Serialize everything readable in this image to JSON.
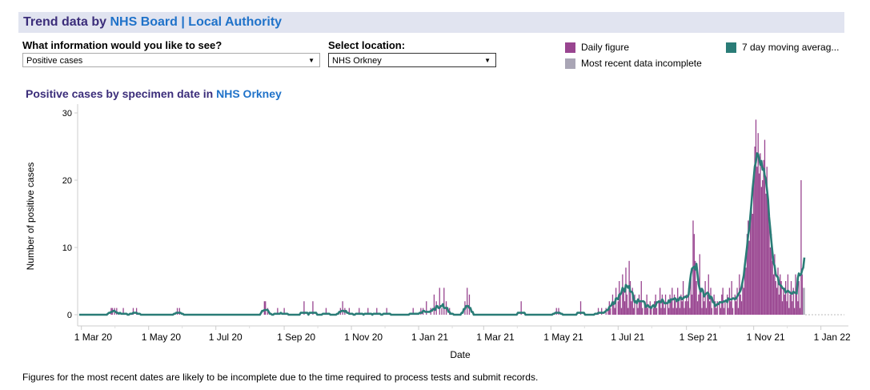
{
  "header": {
    "prefix": "Trend data by ",
    "link1": "NHS Board",
    "sep": " | ",
    "link2": "Local Authority"
  },
  "filters": {
    "info_label": "What information would you like to see?",
    "info_value": "Positive cases",
    "location_label": "Select location:",
    "location_value": "NHS Orkney"
  },
  "legend": [
    {
      "label": "Daily figure",
      "color": "#994590"
    },
    {
      "label": "Most recent data incomplete",
      "color": "#a9a5b5"
    },
    {
      "label": "7 day moving averag...",
      "color": "#2a7c77"
    }
  ],
  "chart_title": {
    "prefix": "Positive cases by specimen date in ",
    "location": "NHS Orkney"
  },
  "footer": "Figures for the most recent dates are likely to be incomplete due to the time required to process tests and submit records.",
  "chart_data": {
    "type": "bar",
    "xlabel": "Date",
    "ylabel": "Number of positive cases",
    "ylim": [
      0,
      30
    ],
    "yticks": [
      0,
      10,
      20,
      30
    ],
    "xlim": [
      "2020-02-27",
      "2022-01-20"
    ],
    "xticks": [
      {
        "date": "2020-03-01",
        "label": "1 Mar 20"
      },
      {
        "date": "2020-05-01",
        "label": "1 May 20"
      },
      {
        "date": "2020-07-01",
        "label": "1 Jul 20"
      },
      {
        "date": "2020-09-01",
        "label": "1 Sep 20"
      },
      {
        "date": "2020-11-01",
        "label": "1 Nov 20"
      },
      {
        "date": "2021-01-01",
        "label": "1 Jan 21"
      },
      {
        "date": "2021-03-01",
        "label": "1 Mar 21"
      },
      {
        "date": "2021-05-01",
        "label": "1 May 21"
      },
      {
        "date": "2021-07-01",
        "label": "1 Jul 21"
      },
      {
        "date": "2021-09-01",
        "label": "1 Sep 21"
      },
      {
        "date": "2021-11-01",
        "label": "1 Nov 21"
      },
      {
        "date": "2022-01-01",
        "label": "1 Jan 22"
      }
    ],
    "series_colors": {
      "daily": "#994590",
      "incomplete": "#a9a5b5",
      "moving_average": "#2a7c77"
    },
    "incomplete_from": "2021-12-16",
    "daily_nonzero": {
      "2020-03-28": 1,
      "2020-03-29": 1,
      "2020-03-31": 1,
      "2020-04-02": 1,
      "2020-04-08": 1,
      "2020-04-17": 1,
      "2020-04-20": 1,
      "2020-05-27": 1,
      "2020-05-29": 1,
      "2020-08-14": 2,
      "2020-08-15": 2,
      "2020-08-17": 1,
      "2020-08-26": 1,
      "2020-09-01": 1,
      "2020-09-19": 2,
      "2020-09-27": 2,
      "2020-10-09": 1,
      "2020-10-22": 1,
      "2020-10-24": 2,
      "2020-10-26": 1,
      "2020-10-30": 1,
      "2020-11-08": 1,
      "2020-11-16": 1,
      "2020-11-24": 1,
      "2020-12-03": 1,
      "2020-12-27": 1,
      "2021-01-03": 1,
      "2021-01-05": 1,
      "2021-01-08": 2,
      "2021-01-12": 1,
      "2021-01-15": 3,
      "2021-01-17": 2,
      "2021-01-20": 4,
      "2021-01-22": 1,
      "2021-01-24": 4,
      "2021-01-26": 2,
      "2021-01-29": 1,
      "2021-02-12": 2,
      "2021-02-14": 4,
      "2021-02-16": 3,
      "2021-04-04": 2,
      "2021-05-06": 1,
      "2021-05-08": 1,
      "2021-05-28": 2,
      "2021-06-13": 1,
      "2021-06-16": 1,
      "2021-06-20": 1,
      "2021-06-22": 1,
      "2021-06-23": 2,
      "2021-06-24": 1,
      "2021-06-26": 3,
      "2021-06-27": 2,
      "2021-06-28": 1,
      "2021-06-29": 4,
      "2021-07-01": 2,
      "2021-07-02": 5,
      "2021-07-03": 3,
      "2021-07-04": 1,
      "2021-07-05": 6,
      "2021-07-06": 4,
      "2021-07-07": 2,
      "2021-07-08": 7,
      "2021-07-09": 3,
      "2021-07-10": 1,
      "2021-07-11": 8,
      "2021-07-12": 5,
      "2021-07-13": 2,
      "2021-07-14": 4,
      "2021-07-15": 1,
      "2021-07-16": 3,
      "2021-07-18": 2,
      "2021-07-19": 1,
      "2021-07-20": 3,
      "2021-07-21": 2,
      "2021-07-22": 5,
      "2021-07-23": 1,
      "2021-07-25": 2,
      "2021-07-26": 1,
      "2021-07-27": 3,
      "2021-07-28": 1,
      "2021-07-30": 2,
      "2021-07-31": 1,
      "2021-08-02": 1,
      "2021-08-03": 2,
      "2021-08-04": 3,
      "2021-08-05": 1,
      "2021-08-07": 2,
      "2021-08-08": 4,
      "2021-08-09": 1,
      "2021-08-10": 3,
      "2021-08-11": 2,
      "2021-08-12": 1,
      "2021-08-13": 3,
      "2021-08-15": 2,
      "2021-08-16": 1,
      "2021-08-17": 3,
      "2021-08-18": 2,
      "2021-08-19": 4,
      "2021-08-20": 1,
      "2021-08-21": 3,
      "2021-08-22": 2,
      "2021-08-23": 1,
      "2021-08-24": 4,
      "2021-08-25": 2,
      "2021-08-26": 1,
      "2021-08-27": 3,
      "2021-08-28": 2,
      "2021-08-29": 5,
      "2021-08-30": 1,
      "2021-08-31": 2,
      "2021-09-01": 3,
      "2021-09-02": 2,
      "2021-09-03": 4,
      "2021-09-04": 1,
      "2021-09-05": 6,
      "2021-09-06": 3,
      "2021-09-07": 14,
      "2021-09-08": 12,
      "2021-09-09": 8,
      "2021-09-10": 5,
      "2021-09-11": 2,
      "2021-09-12": 3,
      "2021-09-13": 9,
      "2021-09-14": 4,
      "2021-09-15": 1,
      "2021-09-16": 3,
      "2021-09-17": 2,
      "2021-09-18": 5,
      "2021-09-19": 1,
      "2021-09-20": 3,
      "2021-09-21": 6,
      "2021-09-22": 2,
      "2021-09-23": 4,
      "2021-09-24": 1,
      "2021-09-26": 3,
      "2021-09-27": 2,
      "2021-09-28": 1,
      "2021-09-29": 2,
      "2021-10-01": 2,
      "2021-10-02": 1,
      "2021-10-03": 3,
      "2021-10-04": 4,
      "2021-10-05": 1,
      "2021-10-06": 2,
      "2021-10-08": 3,
      "2021-10-09": 1,
      "2021-10-10": 4,
      "2021-10-11": 2,
      "2021-10-12": 5,
      "2021-10-13": 1,
      "2021-10-15": 3,
      "2021-10-16": 2,
      "2021-10-17": 4,
      "2021-10-18": 1,
      "2021-10-19": 6,
      "2021-10-20": 3,
      "2021-10-21": 2,
      "2021-10-22": 5,
      "2021-10-23": 4,
      "2021-10-24": 8,
      "2021-10-25": 7,
      "2021-10-26": 12,
      "2021-10-27": 14,
      "2021-10-28": 11,
      "2021-10-29": 15,
      "2021-10-30": 16,
      "2021-10-31": 15,
      "2021-11-01": 20,
      "2021-11-02": 25,
      "2021-11-03": 29,
      "2021-11-04": 22,
      "2021-11-05": 27,
      "2021-11-06": 21,
      "2021-11-07": 24,
      "2021-11-08": 19,
      "2021-11-09": 20,
      "2021-11-10": 23,
      "2021-11-11": 26,
      "2021-11-12": 18,
      "2021-11-13": 22,
      "2021-11-14": 17,
      "2021-11-15": 15,
      "2021-11-16": 10,
      "2021-11-17": 12,
      "2021-11-18": 8,
      "2021-11-19": 6,
      "2021-11-20": 9,
      "2021-11-21": 5,
      "2021-11-22": 4,
      "2021-11-23": 7,
      "2021-11-24": 3,
      "2021-11-25": 6,
      "2021-11-26": 5,
      "2021-11-27": 2,
      "2021-11-28": 4,
      "2021-11-29": 3,
      "2021-11-30": 5,
      "2021-12-01": 2,
      "2021-12-02": 6,
      "2021-12-03": 1,
      "2021-12-04": 3,
      "2021-12-05": 5,
      "2021-12-06": 2,
      "2021-12-07": 4,
      "2021-12-08": 1,
      "2021-12-09": 6,
      "2021-12-10": 3,
      "2021-12-11": 2,
      "2021-12-12": 5,
      "2021-12-13": 1,
      "2021-12-14": 20,
      "2021-12-15": 6,
      "2021-12-16": 4,
      "2021-12-17": 4
    },
    "data_range": [
      "2020-02-28",
      "2021-12-17"
    ]
  }
}
